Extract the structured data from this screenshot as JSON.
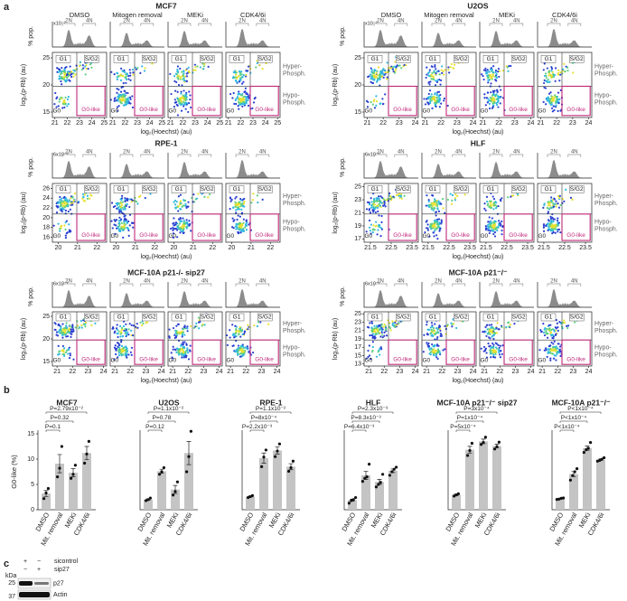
{
  "panel_labels": [
    "a",
    "b",
    "c"
  ],
  "flow": {
    "x_label": "log₂(Hoechst) (au)",
    "y_label": "log₂(p-Rb) (au)",
    "hist_y_label": "% pop.",
    "hist_labels": [
      "2N",
      "4N"
    ],
    "gates": [
      "G1",
      "S/G2",
      "G0",
      "G0-like"
    ],
    "hyper": [
      "Hyper-",
      "Phosph."
    ],
    "hypo": [
      "Hypo-",
      "Phosph."
    ],
    "groups": [
      {
        "title": "MCF7",
        "conditions": [
          "DMSO",
          "Mitogen removal",
          "MEKi",
          "CDK4/6i"
        ],
        "hist_scale": "x10⁻²",
        "xlim": [
          20.8,
          25.2
        ],
        "xticks": [
          21,
          22,
          23,
          24,
          25
        ],
        "ylim": [
          14,
          26
        ],
        "yticks": [
          15,
          20,
          25
        ]
      },
      {
        "title": "U2OS",
        "conditions": [
          "DMSO",
          "Mitogen removal",
          "MEKi",
          "CDK4/6i"
        ],
        "hist_scale": "x10⁻²",
        "xlim": [
          20.8,
          24.2
        ],
        "xticks": [
          21,
          22,
          23,
          24
        ],
        "ylim": [
          14,
          26
        ],
        "yticks": [
          15,
          20,
          25
        ]
      },
      {
        "title": "RPE-1",
        "hist_scale": "6x10⁻²",
        "xlim": [
          19.7,
          22.5
        ],
        "xticks": [
          20,
          21,
          22
        ],
        "ylim": [
          15,
          27
        ],
        "yticks": [
          16,
          18,
          20,
          22,
          24,
          26
        ]
      },
      {
        "title": "HLF",
        "hist_scale": "6x10⁻²",
        "xlim": [
          21.2,
          23.8
        ],
        "xticks": [
          21.5,
          22.5,
          23.5
        ],
        "ylim": [
          16.5,
          25.5
        ],
        "yticks": [
          17,
          19,
          21,
          23,
          25
        ]
      },
      {
        "title": "MCF-10A p21-/- sip27",
        "hist_scale": "6x10⁻²",
        "xlim": [
          20.7,
          24.2
        ],
        "xticks": [
          21,
          22,
          23,
          24
        ],
        "ylim": [
          14,
          26
        ],
        "yticks": [
          15,
          20,
          25
        ]
      },
      {
        "title": "MCF-10A p21⁻/⁻",
        "hist_scale": "6x10⁻²",
        "xlim": [
          20.7,
          24.2
        ],
        "xticks": [
          21,
          22,
          23,
          24
        ],
        "ylim": [
          12.5,
          25.5
        ],
        "yticks": [
          13,
          15,
          17,
          19,
          21,
          23,
          25
        ]
      }
    ]
  },
  "chart_data": [
    {
      "type": "bar",
      "title": "MCF7",
      "y_label": "G0-like (%)",
      "color": "#c4c4c4",
      "categories": [
        "DMSO",
        "Mit. removal",
        "MEKi",
        "CDK4/6i"
      ],
      "values": [
        3.2,
        9.1,
        7.3,
        11.2
      ],
      "errors": [
        0.6,
        1.8,
        0.8,
        1.3
      ],
      "points": [
        [
          2.2,
          3.3,
          4.2
        ],
        [
          6.5,
          8.2,
          12.5
        ],
        [
          6.2,
          7.0,
          8.8
        ],
        [
          9.2,
          11.0,
          13.5
        ]
      ],
      "ylim": [
        0,
        15
      ],
      "yticks": [
        0,
        5,
        10,
        15
      ],
      "annotations": [
        "P=0.1",
        "P=0.32",
        "P=2.79x10⁻²"
      ]
    },
    {
      "type": "bar",
      "title": "U2OS",
      "color": "#c4c4c4",
      "categories": [
        "DMSO",
        "Mit. removal",
        "MEKi",
        "CDK4/6i"
      ],
      "values": [
        2.0,
        7.6,
        4.0,
        11.2
      ],
      "errors": [
        0.15,
        0.4,
        0.8,
        2.3
      ],
      "points": [
        [
          1.8,
          2.0,
          2.3
        ],
        [
          7.0,
          7.5,
          8.3
        ],
        [
          2.9,
          3.6,
          5.5
        ],
        [
          7.5,
          10.5,
          15.5
        ]
      ],
      "ylim": [
        0,
        15
      ],
      "annotations": [
        "P=0.12",
        "P=0.78",
        "P=1.1x10⁻²"
      ]
    },
    {
      "type": "bar",
      "title": "RPE-1",
      "color": "#c4c4c4",
      "categories": [
        "DMSO",
        "Mit. removal",
        "MEKi",
        "CDK4/6i"
      ],
      "values": [
        2.6,
        10.2,
        11.7,
        8.5
      ],
      "errors": [
        0.1,
        1.0,
        0.7,
        0.6
      ],
      "points": [
        [
          2.4,
          2.6,
          2.8
        ],
        [
          8.5,
          10.4,
          11.8
        ],
        [
          10.5,
          11.6,
          13.0
        ],
        [
          7.6,
          8.3,
          9.6
        ]
      ],
      "ylim": [
        0,
        15
      ],
      "annotations": [
        "P=2.2x10⁻³",
        "P=8x10⁻⁴",
        "P=1.1x10⁻²"
      ]
    },
    {
      "type": "bar",
      "title": "HLF",
      "color": "#c4c4c4",
      "categories": [
        "DMSO",
        "Mit. removal",
        "MEKi",
        "CDK4/6i"
      ],
      "values": [
        1.9,
        6.8,
        5.5,
        7.7
      ],
      "errors": [
        0.2,
        0.8,
        0.5,
        0.35
      ],
      "points": [
        [
          1.3,
          1.8,
          2.0,
          2.4
        ],
        [
          5.6,
          6.2,
          6.5,
          9.0
        ],
        [
          4.5,
          5.0,
          5.4,
          7.0
        ],
        [
          6.8,
          7.5,
          8.0,
          8.4
        ]
      ],
      "ylim": [
        0,
        15
      ],
      "annotations": [
        "P=6.4x10⁻³",
        "P=8.3x10⁻³",
        "P=2.3x10⁻³"
      ]
    },
    {
      "type": "bar",
      "title": "MCF-10A p21⁻/⁻ sip27",
      "color": "#c4c4c4",
      "categories": [
        "DMSO",
        "Mit. removal",
        "MEKi",
        "CDK4/6i"
      ],
      "values": [
        3.9,
        15.8,
        18.0,
        16.8
      ],
      "errors": [
        0.2,
        0.9,
        0.6,
        0.5
      ],
      "points": [
        [
          3.6,
          3.9,
          4.2
        ],
        [
          14.3,
          15.6,
          17.5
        ],
        [
          17.2,
          17.7,
          19.1
        ],
        [
          16.0,
          16.6,
          17.8
        ]
      ],
      "ylim": [
        0,
        20
      ],
      "annotations": [
        "P=5x10⁻⁴",
        "P=1x10⁻⁴",
        "P=3x10⁻⁴"
      ]
    },
    {
      "type": "bar",
      "title": "MCF-10A p21⁻/⁻",
      "color": "#c4c4c4",
      "categories": [
        "DMSO",
        "Mit. removal",
        "MEKi",
        "CDK4/6i"
      ],
      "values": [
        2.9,
        9.4,
        16.2,
        13.2
      ],
      "errors": [
        0.1,
        0.65,
        0.55,
        0.2
      ],
      "points": [
        [
          2.7,
          2.8,
          3.0,
          3.1
        ],
        [
          7.8,
          9.0,
          10.0,
          10.8
        ],
        [
          15.1,
          15.8,
          16.2,
          17.7
        ],
        [
          12.8,
          13.0,
          13.3,
          13.7
        ]
      ],
      "ylim": [
        0,
        20
      ],
      "annotations": [
        "P<1x10⁻⁴",
        "P<1x10⁻⁴",
        "P<1x10⁻⁴"
      ]
    }
  ],
  "blot": {
    "kda": "kDa",
    "markers": [
      "25",
      "37"
    ],
    "rows": [
      {
        "name": "sicontrol",
        "signs": [
          "+",
          "−"
        ]
      },
      {
        "name": "sip27",
        "signs": [
          "−",
          "+"
        ]
      }
    ],
    "bands": [
      "p27",
      "Actin"
    ]
  }
}
